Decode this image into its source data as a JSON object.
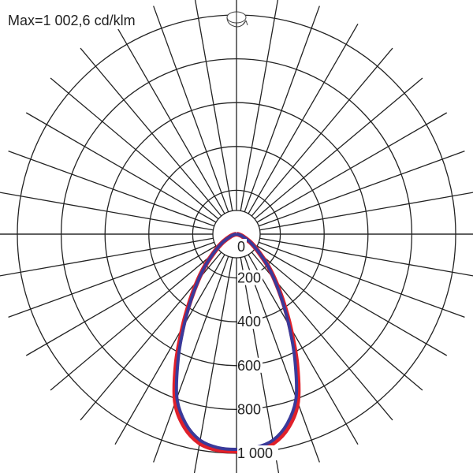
{
  "chart_data": {
    "type": "polar-line",
    "title": "Max=1 002,6 cd/klm",
    "unit": "cd/klm",
    "radial_ticks": [
      0,
      200,
      400,
      600,
      800,
      1000
    ],
    "radial_tick_labels": [
      "0",
      "200",
      "400",
      "600",
      "800",
      "1 000"
    ],
    "rmax": 1000,
    "angle_grid_step_deg": 10,
    "gamma_deg": [
      0,
      5,
      10,
      15,
      20,
      25,
      30,
      35,
      40,
      45,
      50,
      55,
      60,
      70,
      80,
      90
    ],
    "series": [
      {
        "color": "#e0202a",
        "values": [
          990,
          988,
          968,
          912,
          815,
          650,
          490,
          365,
          272,
          200,
          140,
          100,
          70,
          30,
          10,
          0
        ]
      },
      {
        "color": "#3a3a9a",
        "values": [
          982,
          978,
          955,
          895,
          795,
          630,
          478,
          358,
          268,
          198,
          140,
          100,
          70,
          30,
          10,
          0
        ]
      }
    ],
    "icon": "rotation-icon",
    "grid_color": "#222222"
  }
}
